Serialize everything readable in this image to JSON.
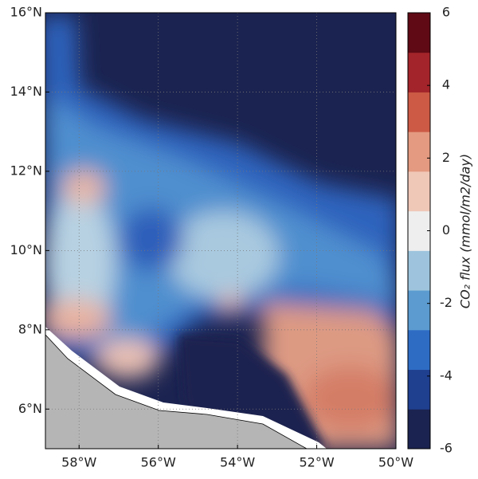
{
  "chart_data": {
    "type": "map",
    "xlim": [
      -58.85,
      -50
    ],
    "ylim": [
      5,
      16
    ],
    "xticks": [
      {
        "value": -58,
        "label": "58°W"
      },
      {
        "value": -56,
        "label": "56°W"
      },
      {
        "value": -54,
        "label": "54°W"
      },
      {
        "value": -52,
        "label": "52°W"
      },
      {
        "value": -50,
        "label": "50°W"
      }
    ],
    "yticks": [
      {
        "value": 6,
        "label": "6°N"
      },
      {
        "value": 8,
        "label": "8°N"
      },
      {
        "value": 10,
        "label": "10°N"
      },
      {
        "value": 12,
        "label": "12°N"
      },
      {
        "value": 14,
        "label": "14°N"
      },
      {
        "value": 16,
        "label": "16°N"
      }
    ],
    "grid": true,
    "colorbar": {
      "label": "CO₂ flux (mmol/m2/day)",
      "lim": [
        -6,
        6
      ],
      "ticks": [
        -6,
        -4,
        -2,
        0,
        2,
        4,
        6
      ],
      "colors": [
        "#1b2350",
        "#1f3f8f",
        "#2e6cc4",
        "#5b9bd0",
        "#9dc4dc",
        "#eeeeee",
        "#f0c8b8",
        "#e39a80",
        "#cc5a45",
        "#a3242a",
        "#5f0a14"
      ]
    }
  }
}
